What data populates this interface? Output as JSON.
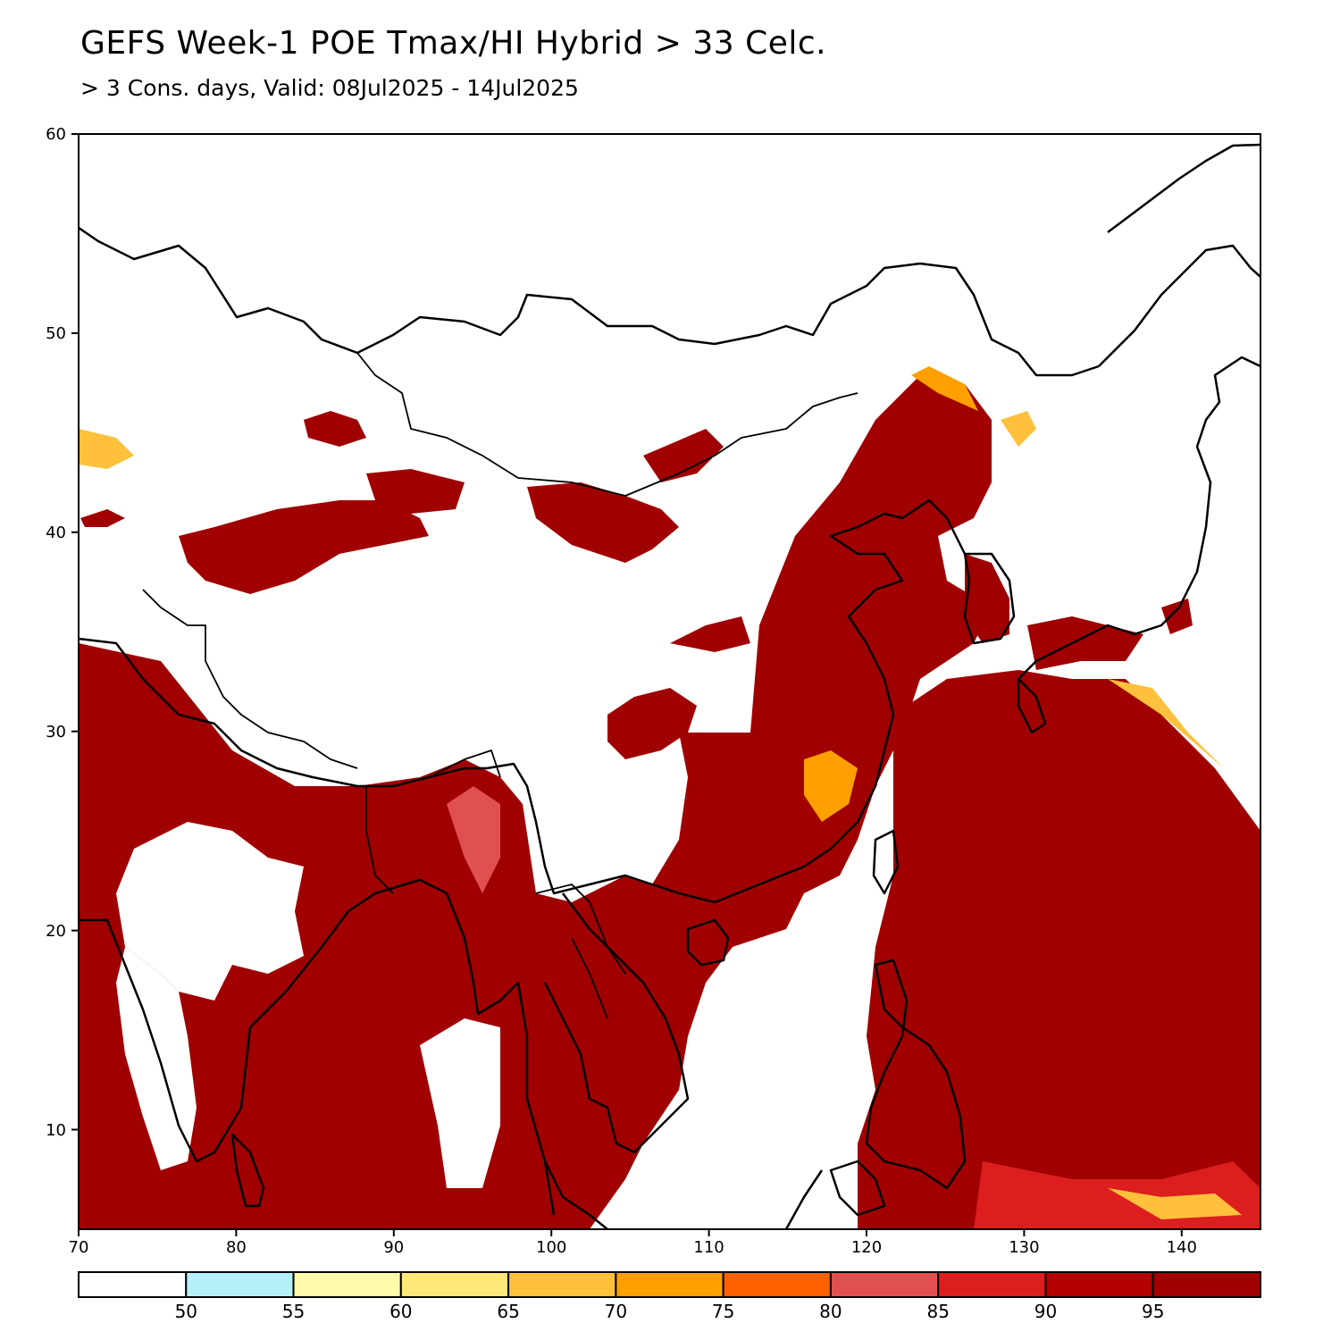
{
  "header": {
    "title": "GEFS Week-1 POE Tmax/HI Hybrid > 33 Celc.",
    "subtitle": "> 3 Cons. days, Valid: 08Jul2025 - 14Jul2025"
  },
  "map": {
    "lon_range": [
      70,
      145
    ],
    "lat_range": [
      5,
      60
    ],
    "lon_ticks": [
      "70",
      "80",
      "90",
      "100",
      "110",
      "120",
      "130",
      "140"
    ],
    "lat_ticks": [
      "10",
      "20",
      "30",
      "40",
      "50",
      "60"
    ]
  },
  "colorbar": {
    "colors": [
      "#ffffff",
      "#b4f0fa",
      "#fffaaa",
      "#ffe878",
      "#ffc03c",
      "#ffa000",
      "#ff6000",
      "#e15050",
      "#dc1e1e",
      "#b40000",
      "#a00000"
    ],
    "labels": [
      "50",
      "55",
      "60",
      "65",
      "70",
      "75",
      "80",
      "85",
      "90",
      "95"
    ]
  },
  "colors": {
    "high_probability": "#a00000",
    "outline": "#000000"
  }
}
